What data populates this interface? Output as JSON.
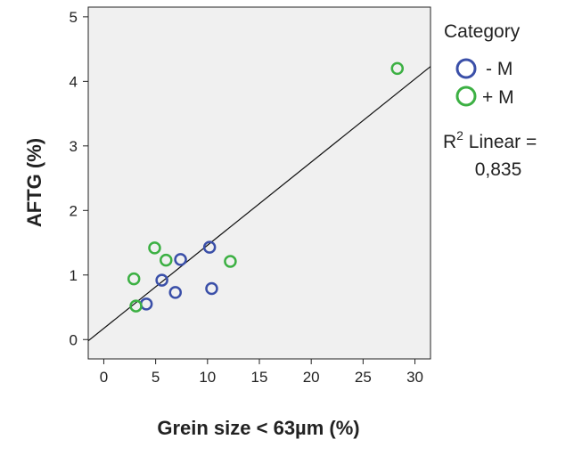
{
  "chart_data": {
    "type": "scatter",
    "title": "",
    "xlabel": "Grein size < 63µm (%)",
    "ylabel": "AFTG (%)",
    "xlim": [
      -1.5,
      31.5
    ],
    "ylim": [
      -0.3,
      5.15
    ],
    "xticks": [
      0,
      5,
      10,
      15,
      20,
      25,
      30
    ],
    "yticks": [
      0,
      1,
      2,
      3,
      4,
      5
    ],
    "grid": false,
    "legend_position": "right",
    "legend": {
      "title": "Category"
    },
    "series": [
      {
        "name": "- M",
        "color": "#3a4fa8",
        "points": [
          {
            "x": 4.1,
            "y": 0.55
          },
          {
            "x": 5.6,
            "y": 0.92
          },
          {
            "x": 6.9,
            "y": 0.73
          },
          {
            "x": 7.4,
            "y": 1.24
          },
          {
            "x": 10.2,
            "y": 1.43
          },
          {
            "x": 10.4,
            "y": 0.79
          }
        ]
      },
      {
        "name": "+ M",
        "color": "#3cb043",
        "points": [
          {
            "x": 2.9,
            "y": 0.94
          },
          {
            "x": 3.1,
            "y": 0.52
          },
          {
            "x": 4.9,
            "y": 1.42
          },
          {
            "x": 6.0,
            "y": 1.23
          },
          {
            "x": 12.2,
            "y": 1.21
          },
          {
            "x": 28.3,
            "y": 4.2
          }
        ]
      }
    ],
    "fit_line": {
      "label_prefix": "R",
      "label_sup": "2",
      "label_suffix": " Linear =",
      "r2_text": "0,835",
      "points": [
        {
          "x": -1.5,
          "y": -0.02
        },
        {
          "x": 31.5,
          "y": 4.23
        }
      ]
    }
  }
}
